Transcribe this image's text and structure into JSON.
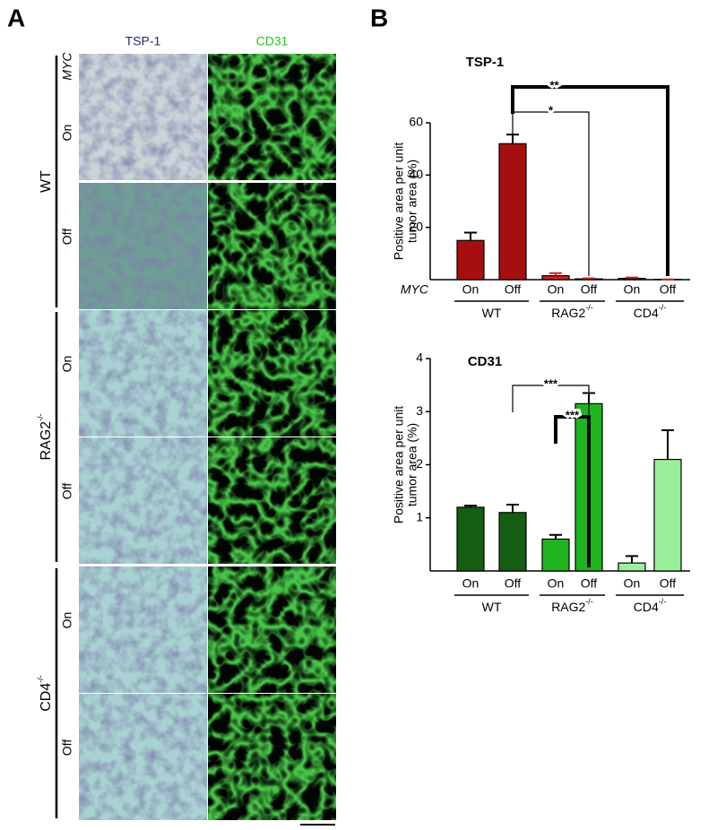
{
  "panel_a": {
    "label": "A",
    "columns": [
      "TSP-1",
      "CD31"
    ],
    "row_header": "MYC",
    "groups": [
      {
        "name": "WT",
        "sup": "",
        "rows": [
          "On",
          "Off"
        ]
      },
      {
        "name": "RAG2",
        "sup": "-/-",
        "rows": [
          "On",
          "Off"
        ]
      },
      {
        "name": "CD4",
        "sup": "-/-",
        "rows": [
          "On",
          "Off"
        ]
      }
    ]
  },
  "panel_b": {
    "label": "B"
  },
  "chart_data": [
    {
      "type": "bar",
      "title": "TSP-1",
      "y_label": [
        "Positive area per unit",
        "tumor area (%)"
      ],
      "x_label": "MYC",
      "categories": [
        "On",
        "Off",
        "On",
        "Off",
        "On",
        "Off"
      ],
      "groups": [
        {
          "name": "WT",
          "sup": ""
        },
        {
          "name": "RAG2",
          "sup": "-/-"
        },
        {
          "name": "CD4",
          "sup": "-/-"
        }
      ],
      "values": [
        15,
        52,
        1.5,
        0.3,
        0.5,
        0.1
      ],
      "errors": [
        3,
        3.5,
        1,
        0.2,
        0.3,
        0
      ],
      "colors": [
        "#a50f0f",
        "#a50f0f",
        "#d42020",
        "#d42020",
        "#d42020",
        "#d42020"
      ],
      "ylim": [
        0,
        60
      ],
      "yticks": [
        20,
        40,
        60
      ],
      "annotations": [
        "**",
        "*"
      ]
    },
    {
      "type": "bar",
      "title": "CD31",
      "y_label": [
        "Positive area per unit",
        "tumor area (%)"
      ],
      "categories": [
        "On",
        "Off",
        "On",
        "Off",
        "On",
        "Off"
      ],
      "groups": [
        {
          "name": "WT",
          "sup": ""
        },
        {
          "name": "RAG2",
          "sup": "-/-"
        },
        {
          "name": "CD4",
          "sup": "-/-"
        }
      ],
      "values": [
        1.2,
        1.1,
        0.6,
        3.15,
        0.15,
        2.1
      ],
      "errors": [
        0.03,
        0.15,
        0.08,
        0.2,
        0.13,
        0.55
      ],
      "colors": [
        "#135e13",
        "#135e13",
        "#1fb41f",
        "#1fb41f",
        "#9af09a",
        "#9af09a"
      ],
      "ylim": [
        0,
        4
      ],
      "yticks": [
        1,
        2,
        3,
        4
      ],
      "annotations": [
        "***",
        "***"
      ]
    }
  ]
}
